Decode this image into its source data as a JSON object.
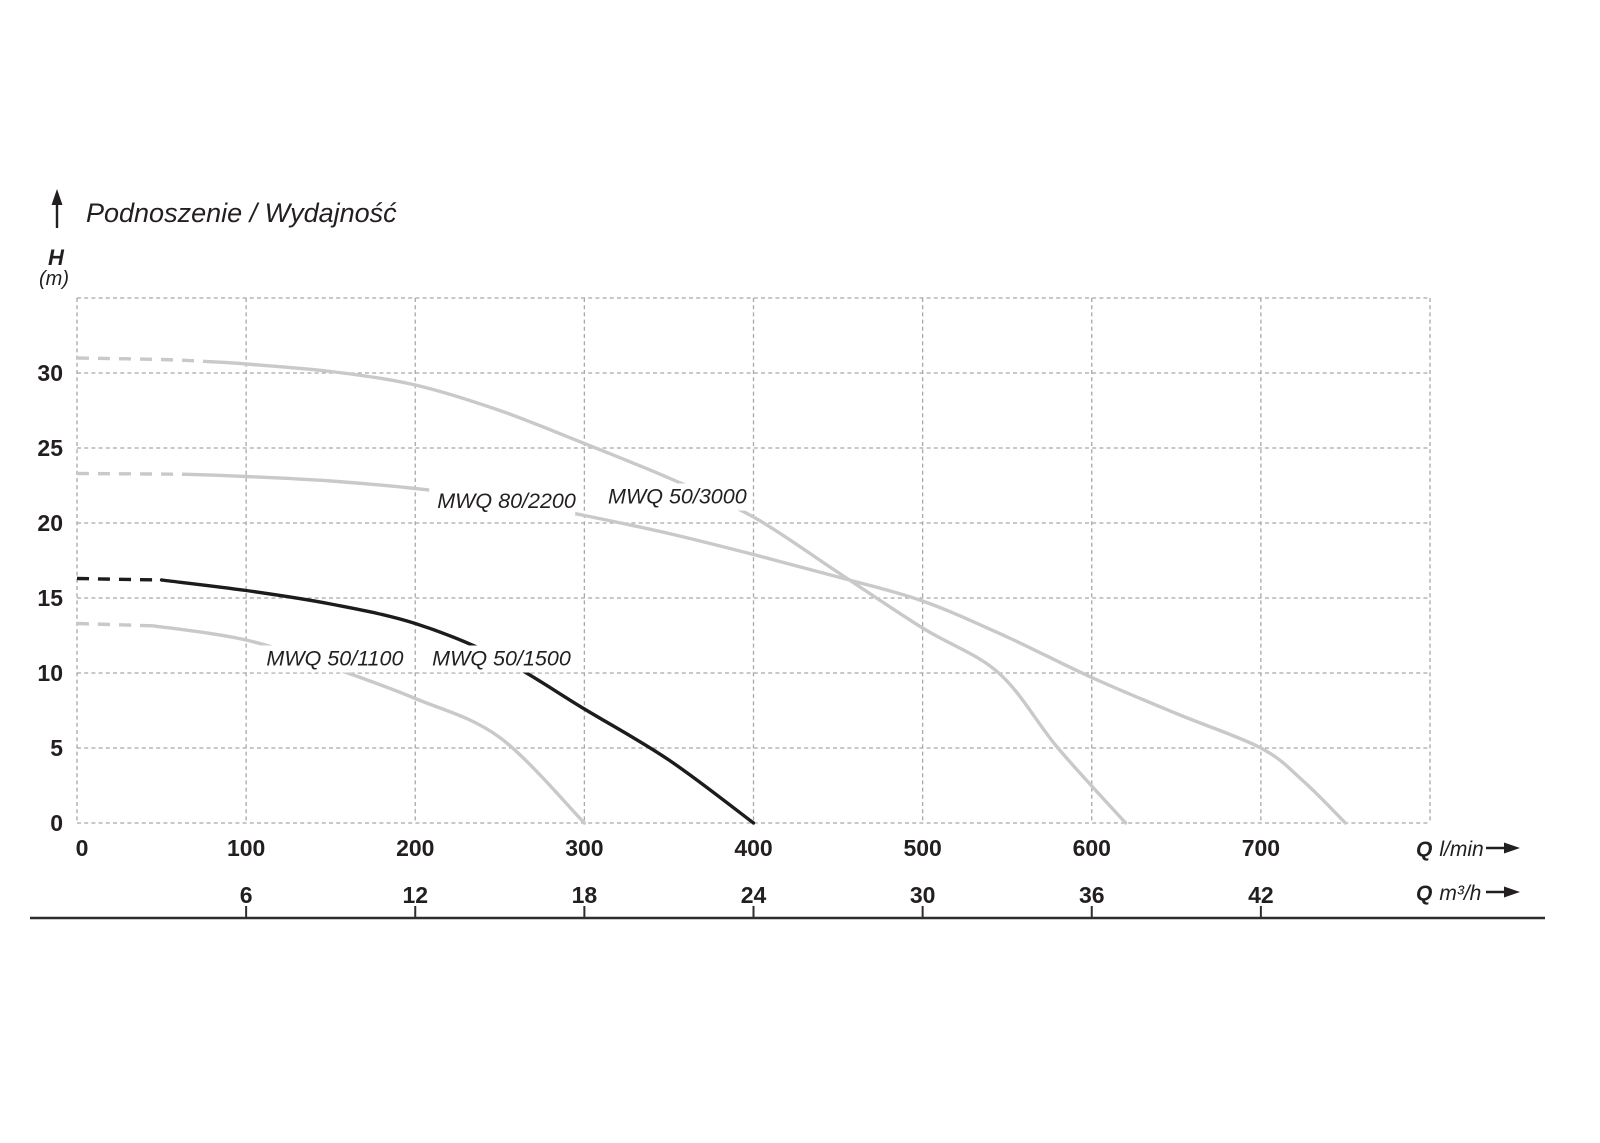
{
  "title": "Podnoszenie / Wydajność",
  "y_axis": {
    "symbol": "H",
    "unit": "(m)",
    "ticks": [
      0,
      5,
      10,
      15,
      20,
      25,
      30
    ]
  },
  "x_axis_lmin": {
    "symbol": "Q",
    "unit": "l/min",
    "ticks": [
      0,
      100,
      200,
      300,
      400,
      500,
      600,
      700
    ]
  },
  "x_axis_m3h": {
    "symbol": "Q",
    "unit": "m³/h",
    "ticks": [
      6,
      12,
      18,
      24,
      30,
      36,
      42
    ]
  },
  "colors": {
    "curve_gray": "#c9c9c9",
    "curve_black": "#1c1c1c",
    "label_gray": "#b5b5b5",
    "label_black": "#1c1c1c",
    "grid": "#a8a8a8",
    "text": "#231f20",
    "axis_line": "#2e2e2e",
    "background": "#ffffff"
  },
  "chart_data": {
    "type": "line",
    "title": "Podnoszenie / Wydajność",
    "ylabel": "H (m)",
    "xlabel_primary": "Q l/min",
    "xlabel_secondary": "Q m³/h",
    "xlim_lmin": [
      0,
      800
    ],
    "ylim_m": [
      0,
      35
    ],
    "x_grid_step_lmin": 100,
    "y_grid_step_m": 5,
    "grid": "dashed",
    "legend_position": "labels-on-curves",
    "series": [
      {
        "name": "MWQ 50/3000",
        "color": "#c9c9c9",
        "label_color": "#b5b5b5",
        "dashed_until_q": 80,
        "points_q_h": [
          [
            0,
            31
          ],
          [
            50,
            30.9
          ],
          [
            80,
            30.75
          ],
          [
            100,
            30.6
          ],
          [
            150,
            30.1
          ],
          [
            200,
            29.2
          ],
          [
            250,
            27.5
          ],
          [
            300,
            25.3
          ],
          [
            350,
            23.0
          ],
          [
            400,
            20.4
          ],
          [
            450,
            16.7
          ],
          [
            500,
            13.0
          ],
          [
            545,
            10.0
          ],
          [
            580,
            5.0
          ],
          [
            620,
            0
          ]
        ],
        "label": {
          "text": "MWQ 50/3000",
          "q": 314,
          "h": 21.3
        }
      },
      {
        "name": "MWQ 80/2200",
        "color": "#c9c9c9",
        "label_color": "#b5b5b5",
        "dashed_until_q": 65,
        "points_q_h": [
          [
            0,
            23.3
          ],
          [
            65,
            23.25
          ],
          [
            100,
            23.1
          ],
          [
            150,
            22.8
          ],
          [
            200,
            22.3
          ],
          [
            250,
            21.6
          ],
          [
            300,
            20.5
          ],
          [
            350,
            19.3
          ],
          [
            400,
            17.9
          ],
          [
            450,
            16.4
          ],
          [
            500,
            14.8
          ],
          [
            550,
            12.4
          ],
          [
            600,
            9.7
          ],
          [
            650,
            7.3
          ],
          [
            700,
            5.0
          ],
          [
            725,
            2.8
          ],
          [
            750,
            0
          ]
        ],
        "label": {
          "text": "MWQ 80/2200",
          "q": 213,
          "h": 21.0
        }
      },
      {
        "name": "MWQ 50/1100",
        "color": "#c9c9c9",
        "label_color": "#b5b5b5",
        "dashed_until_q": 45,
        "points_q_h": [
          [
            0,
            13.3
          ],
          [
            45,
            13.15
          ],
          [
            100,
            12.2
          ],
          [
            150,
            10.4
          ],
          [
            200,
            8.3
          ],
          [
            250,
            5.7
          ],
          [
            300,
            0
          ]
        ],
        "label": {
          "text": "MWQ 50/1100",
          "q": 112,
          "h": 10.5
        }
      },
      {
        "name": "MWQ 50/1500",
        "color": "#1c1c1c",
        "label_color": "#1c1c1c",
        "dashed_until_q": 50,
        "points_q_h": [
          [
            0,
            16.3
          ],
          [
            50,
            16.2
          ],
          [
            100,
            15.5
          ],
          [
            150,
            14.6
          ],
          [
            200,
            13.3
          ],
          [
            250,
            11.0
          ],
          [
            300,
            7.6
          ],
          [
            350,
            4.2
          ],
          [
            400,
            0
          ]
        ],
        "label": {
          "text": "MWQ 50/1500",
          "q": 210,
          "h": 10.5
        }
      }
    ]
  }
}
